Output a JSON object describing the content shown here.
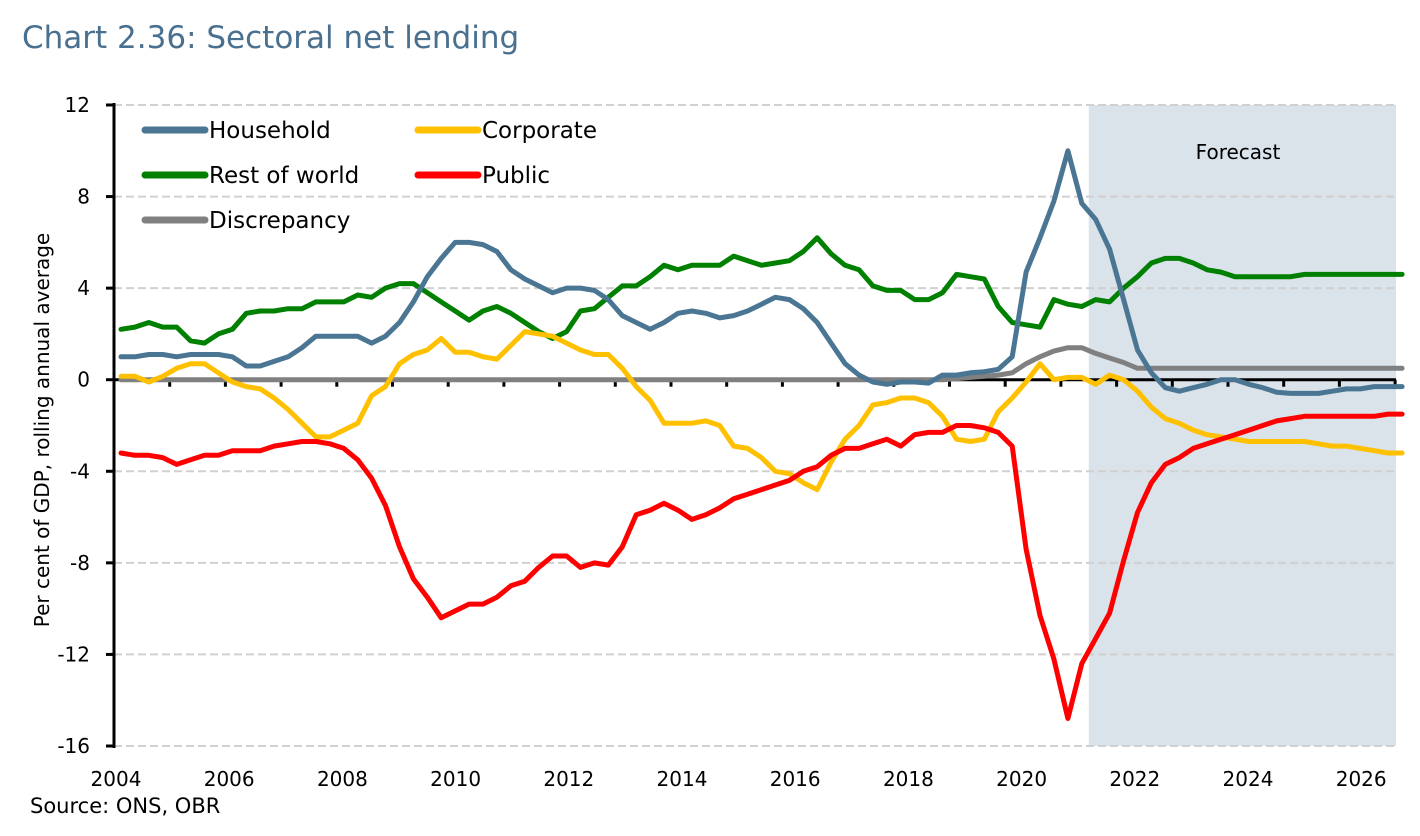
{
  "title": "Chart 2.36: Sectoral net lending",
  "source": "Source: ONS, OBR",
  "chart_data": {
    "type": "line",
    "title": "Chart 2.36: Sectoral net lending",
    "ylabel": "Per cent of GDP,  rolling annual average",
    "xlabel": "",
    "ylim": [
      -16,
      12
    ],
    "yticks": [
      12,
      8,
      4,
      0,
      -4,
      -8,
      -12,
      -16
    ],
    "xticks": [
      "2004",
      "2006",
      "2008",
      "2010",
      "2012",
      "2014",
      "2016",
      "2018",
      "2020",
      "2022",
      "2024",
      "2026"
    ],
    "grid": "horizontal dashed",
    "legend_placement": "top-left",
    "frequency": "quarterly",
    "start": "2004 Q1",
    "forecast": {
      "label": "Forecast",
      "start": "2021 Q3",
      "shade_color": "#DAE2EA"
    },
    "series": [
      {
        "name": "Household",
        "color": "#4A7593",
        "values": [
          1.0,
          1.0,
          1.1,
          1.1,
          1.0,
          1.1,
          1.1,
          1.1,
          1.0,
          0.6,
          0.6,
          0.8,
          1.0,
          1.4,
          1.9,
          1.9,
          1.9,
          1.9,
          1.6,
          1.9,
          2.5,
          3.4,
          4.5,
          5.3,
          6.0,
          6.0,
          5.9,
          5.6,
          4.8,
          4.4,
          4.1,
          3.8,
          4.0,
          4.0,
          3.9,
          3.5,
          2.8,
          2.5,
          2.2,
          2.5,
          2.9,
          3.0,
          2.9,
          2.7,
          2.8,
          3.0,
          3.3,
          3.6,
          3.5,
          3.1,
          2.5,
          1.6,
          0.7,
          0.2,
          -0.1,
          -0.2,
          -0.1,
          -0.1,
          -0.15,
          0.2,
          0.2,
          0.3,
          0.35,
          0.45,
          1.0,
          4.7,
          6.2,
          7.8,
          10.0,
          7.7,
          7.0,
          5.7,
          3.5,
          1.3,
          0.3,
          -0.35,
          -0.5,
          -0.35,
          -0.2,
          0.0,
          0.0,
          -0.2,
          -0.35,
          -0.55,
          -0.6,
          -0.6,
          -0.6,
          -0.5,
          -0.4,
          -0.4,
          -0.3,
          -0.3,
          -0.3
        ]
      },
      {
        "name": "Corporate",
        "color": "#FFC000",
        "values": [
          0.15,
          0.15,
          -0.1,
          0.15,
          0.5,
          0.7,
          0.7,
          0.3,
          -0.1,
          -0.3,
          -0.4,
          -0.8,
          -1.3,
          -1.9,
          -2.5,
          -2.5,
          -2.2,
          -1.9,
          -0.7,
          -0.3,
          0.7,
          1.1,
          1.3,
          1.8,
          1.2,
          1.2,
          1.0,
          0.9,
          1.5,
          2.1,
          2.0,
          1.9,
          1.6,
          1.3,
          1.1,
          1.1,
          0.5,
          -0.3,
          -0.9,
          -1.9,
          -1.9,
          -1.9,
          -1.8,
          -2.0,
          -2.9,
          -3.0,
          -3.4,
          -4.0,
          -4.1,
          -4.5,
          -4.8,
          -3.6,
          -2.6,
          -2.0,
          -1.1,
          -1.0,
          -0.8,
          -0.8,
          -1.0,
          -1.6,
          -2.6,
          -2.7,
          -2.6,
          -1.4,
          -0.8,
          -0.1,
          0.7,
          0.0,
          0.1,
          0.1,
          -0.2,
          0.2,
          0.0,
          -0.5,
          -1.2,
          -1.7,
          -1.9,
          -2.2,
          -2.4,
          -2.5,
          -2.6,
          -2.7,
          -2.7,
          -2.7,
          -2.7,
          -2.7,
          -2.8,
          -2.9,
          -2.9,
          -3.0,
          -3.1,
          -3.2,
          -3.2
        ]
      },
      {
        "name": "Rest of world",
        "color": "#008000",
        "values": [
          2.2,
          2.3,
          2.5,
          2.3,
          2.3,
          1.7,
          1.6,
          2.0,
          2.2,
          2.9,
          3.0,
          3.0,
          3.1,
          3.1,
          3.4,
          3.4,
          3.4,
          3.7,
          3.6,
          4.0,
          4.2,
          4.2,
          3.8,
          3.4,
          3.0,
          2.6,
          3.0,
          3.2,
          2.9,
          2.5,
          2.1,
          1.8,
          2.1,
          3.0,
          3.1,
          3.6,
          4.1,
          4.1,
          4.5,
          5.0,
          4.8,
          5.0,
          5.0,
          5.0,
          5.4,
          5.2,
          5.0,
          5.1,
          5.2,
          5.6,
          6.2,
          5.5,
          5.0,
          4.8,
          4.1,
          3.9,
          3.9,
          3.5,
          3.5,
          3.8,
          4.6,
          4.5,
          4.4,
          3.2,
          2.5,
          2.4,
          2.3,
          3.5,
          3.3,
          3.2,
          3.5,
          3.4,
          4.0,
          4.5,
          5.1,
          5.3,
          5.3,
          5.1,
          4.8,
          4.7,
          4.5,
          4.5,
          4.5,
          4.5,
          4.5,
          4.6,
          4.6,
          4.6,
          4.6,
          4.6,
          4.6,
          4.6,
          4.6
        ]
      },
      {
        "name": "Public",
        "color": "#FF0000",
        "values": [
          -3.2,
          -3.3,
          -3.3,
          -3.4,
          -3.7,
          -3.5,
          -3.3,
          -3.3,
          -3.1,
          -3.1,
          -3.1,
          -2.9,
          -2.8,
          -2.7,
          -2.7,
          -2.8,
          -3.0,
          -3.5,
          -4.3,
          -5.5,
          -7.3,
          -8.7,
          -9.5,
          -10.4,
          -10.1,
          -9.8,
          -9.8,
          -9.5,
          -9.0,
          -8.8,
          -8.2,
          -7.7,
          -7.7,
          -8.2,
          -8.0,
          -8.1,
          -7.3,
          -5.9,
          -5.7,
          -5.4,
          -5.7,
          -6.1,
          -5.9,
          -5.6,
          -5.2,
          -5.0,
          -4.8,
          -4.6,
          -4.4,
          -4.0,
          -3.8,
          -3.3,
          -3.0,
          -3.0,
          -2.8,
          -2.6,
          -2.9,
          -2.4,
          -2.3,
          -2.3,
          -2.0,
          -2.0,
          -2.1,
          -2.3,
          -2.9,
          -7.4,
          -10.3,
          -12.2,
          -14.8,
          -12.4,
          -11.3,
          -10.2,
          -7.9,
          -5.8,
          -4.5,
          -3.7,
          -3.4,
          -3.0,
          -2.8,
          -2.6,
          -2.4,
          -2.2,
          -2.0,
          -1.8,
          -1.7,
          -1.6,
          -1.6,
          -1.6,
          -1.6,
          -1.6,
          -1.6,
          -1.5,
          -1.5
        ]
      },
      {
        "name": "Discrepancy",
        "color": "#808080",
        "values": [
          0,
          0,
          0,
          0,
          0,
          0,
          0,
          0,
          0,
          0,
          0,
          0,
          0,
          0,
          0,
          0,
          0,
          0,
          0,
          0,
          0,
          0,
          0,
          0,
          0,
          0,
          0,
          0,
          0,
          0,
          0,
          0,
          0,
          0,
          0,
          0,
          0,
          0,
          0,
          0,
          0,
          0,
          0,
          0,
          0,
          0,
          0,
          0,
          0,
          0,
          0,
          0,
          0,
          0,
          0,
          0,
          0,
          0,
          0,
          0,
          0.05,
          0.1,
          0.15,
          0.2,
          0.3,
          0.7,
          1.0,
          1.25,
          1.4,
          1.4,
          1.15,
          0.95,
          0.75,
          0.5,
          0.5,
          0.5,
          0.5,
          0.5,
          0.5,
          0.5,
          0.5,
          0.5,
          0.5,
          0.5,
          0.5,
          0.5,
          0.5,
          0.5,
          0.5,
          0.5,
          0.5,
          0.5,
          0.5
        ]
      }
    ]
  }
}
